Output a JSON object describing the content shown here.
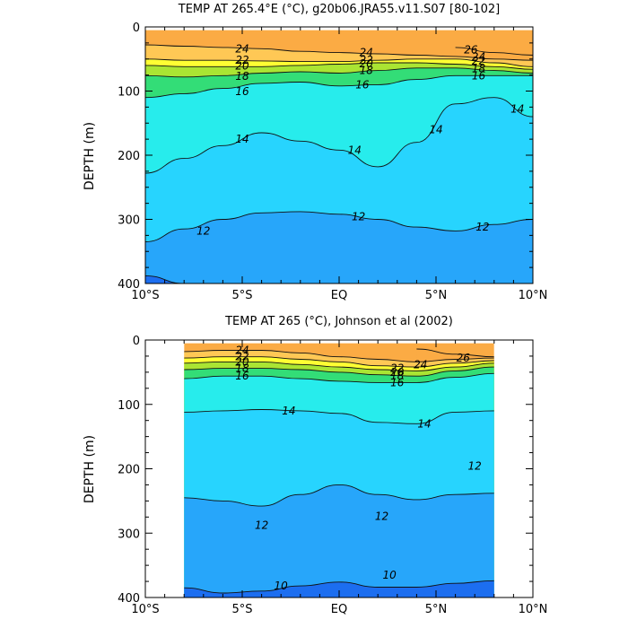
{
  "chart_data": [
    {
      "type": "contour",
      "title": "TEMP AT 265.4°E (°C), g20b06.JRA55.v11.S07 [80-102]",
      "ylabel": "DEPTH (m)",
      "xlim": [
        -10,
        10
      ],
      "ylim": [
        400,
        0
      ],
      "x_ticks": [
        -10,
        -5,
        0,
        5,
        10
      ],
      "x_tick_labels": [
        "10°S",
        "5°S",
        "EQ",
        "5°N",
        "10°N"
      ],
      "y_ticks": [
        0,
        100,
        200,
        300,
        400
      ],
      "y_tick_labels": [
        "0",
        "100",
        "200",
        "300",
        "400"
      ],
      "x": [
        -10,
        -8,
        -6,
        -4,
        -2,
        0,
        2,
        4,
        6,
        8,
        10
      ],
      "isotherm_depths": [
        {
          "temp": 26,
          "depth": [
            null,
            null,
            null,
            null,
            null,
            null,
            null,
            null,
            32,
            40,
            44
          ]
        },
        {
          "temp": 24,
          "depth": [
            28,
            30,
            32,
            34,
            38,
            40,
            42,
            44,
            46,
            50,
            52
          ]
        },
        {
          "temp": 22,
          "depth": [
            50,
            52,
            52,
            53,
            54,
            54,
            52,
            50,
            50,
            56,
            62
          ]
        },
        {
          "temp": 20,
          "depth": [
            60,
            62,
            62,
            62,
            60,
            58,
            56,
            56,
            58,
            62,
            66
          ]
        },
        {
          "temp": 18,
          "depth": [
            76,
            78,
            76,
            72,
            70,
            72,
            68,
            64,
            64,
            68,
            72
          ]
        },
        {
          "temp": 16,
          "depth": [
            110,
            104,
            96,
            88,
            86,
            92,
            90,
            82,
            76,
            76,
            76
          ]
        },
        {
          "temp": 14,
          "depth": [
            228,
            205,
            185,
            165,
            178,
            192,
            218,
            180,
            120,
            110,
            140
          ]
        },
        {
          "temp": 12,
          "depth": [
            335,
            315,
            300,
            290,
            288,
            292,
            300,
            312,
            318,
            308,
            300
          ]
        },
        {
          "temp": 10,
          "depth": [
            388,
            400,
            null,
            null,
            null,
            null,
            null,
            null,
            null,
            null,
            null
          ]
        }
      ],
      "contour_labels": [
        {
          "text": "24",
          "x": -5.0,
          "y": 34
        },
        {
          "text": "22",
          "x": -5.0,
          "y": 52
        },
        {
          "text": "20",
          "x": -5.0,
          "y": 61
        },
        {
          "text": "18",
          "x": -5.0,
          "y": 77
        },
        {
          "text": "16",
          "x": -5.0,
          "y": 101
        },
        {
          "text": "24",
          "x": 1.4,
          "y": 40
        },
        {
          "text": "22",
          "x": 1.4,
          "y": 52
        },
        {
          "text": "20",
          "x": 1.4,
          "y": 57
        },
        {
          "text": "18",
          "x": 1.4,
          "y": 68
        },
        {
          "text": "16",
          "x": 1.2,
          "y": 90
        },
        {
          "text": "26",
          "x": 6.8,
          "y": 36
        },
        {
          "text": "24",
          "x": 7.2,
          "y": 47
        },
        {
          "text": "22",
          "x": 7.2,
          "y": 53
        },
        {
          "text": "18",
          "x": 7.2,
          "y": 65
        },
        {
          "text": "16",
          "x": 7.2,
          "y": 76
        },
        {
          "text": "14",
          "x": -5.0,
          "y": 175
        },
        {
          "text": "14",
          "x": 0.8,
          "y": 192
        },
        {
          "text": "14",
          "x": 5.0,
          "y": 160
        },
        {
          "text": "14",
          "x": 9.2,
          "y": 128
        },
        {
          "text": "12",
          "x": -7.0,
          "y": 318
        },
        {
          "text": "12",
          "x": 1.0,
          "y": 296
        },
        {
          "text": "12",
          "x": 7.4,
          "y": 312
        }
      ]
    },
    {
      "type": "contour",
      "title": "TEMP AT 265 (°C), Johnson et al (2002)",
      "ylabel": "DEPTH (m)",
      "xlim": [
        -10,
        10
      ],
      "ylim": [
        400,
        0
      ],
      "data_extent_x": [
        -8,
        8
      ],
      "x_ticks": [
        -10,
        -5,
        0,
        5,
        10
      ],
      "x_tick_labels": [
        "10°S",
        "5°S",
        "EQ",
        "5°N",
        "10°N"
      ],
      "y_ticks": [
        0,
        100,
        200,
        300,
        400
      ],
      "y_tick_labels": [
        "0",
        "100",
        "200",
        "300",
        "400"
      ],
      "x": [
        -8,
        -6,
        -4,
        -2,
        0,
        2,
        4,
        6,
        8
      ],
      "isotherm_depths": [
        {
          "temp": 26,
          "depth": [
            null,
            null,
            null,
            null,
            null,
            null,
            14,
            22,
            26
          ]
        },
        {
          "temp": 24,
          "depth": [
            18,
            16,
            16,
            20,
            26,
            30,
            34,
            30,
            28
          ]
        },
        {
          "temp": 22,
          "depth": [
            28,
            26,
            26,
            30,
            34,
            40,
            42,
            36,
            32
          ]
        },
        {
          "temp": 20,
          "depth": [
            36,
            34,
            34,
            38,
            42,
            46,
            48,
            42,
            36
          ]
        },
        {
          "temp": 18,
          "depth": [
            46,
            44,
            44,
            46,
            50,
            54,
            56,
            48,
            42
          ]
        },
        {
          "temp": 16,
          "depth": [
            60,
            56,
            56,
            60,
            64,
            66,
            66,
            58,
            52
          ]
        },
        {
          "temp": 14,
          "depth": [
            112,
            110,
            108,
            110,
            114,
            128,
            130,
            112,
            110
          ]
        },
        {
          "temp": 12,
          "depth": [
            245,
            250,
            258,
            240,
            225,
            240,
            248,
            240,
            238
          ]
        },
        {
          "temp": 10,
          "depth": [
            385,
            393,
            390,
            382,
            376,
            384,
            384,
            378,
            374
          ]
        }
      ],
      "contour_labels": [
        {
          "text": "24",
          "x": -5.0,
          "y": 16
        },
        {
          "text": "22",
          "x": -5.0,
          "y": 26
        },
        {
          "text": "20",
          "x": -5.0,
          "y": 34
        },
        {
          "text": "18",
          "x": -5.0,
          "y": 44
        },
        {
          "text": "16",
          "x": -5.0,
          "y": 56
        },
        {
          "text": "22",
          "x": 3.0,
          "y": 44
        },
        {
          "text": "20",
          "x": 3.0,
          "y": 50
        },
        {
          "text": "18",
          "x": 3.0,
          "y": 56
        },
        {
          "text": "16",
          "x": 3.0,
          "y": 66
        },
        {
          "text": "24",
          "x": 4.2,
          "y": 38
        },
        {
          "text": "26",
          "x": 6.4,
          "y": 28
        },
        {
          "text": "14",
          "x": -2.6,
          "y": 110
        },
        {
          "text": "14",
          "x": 4.4,
          "y": 130
        },
        {
          "text": "12",
          "x": 7.0,
          "y": 196
        },
        {
          "text": "12",
          "x": -4.0,
          "y": 288
        },
        {
          "text": "12",
          "x": 2.2,
          "y": 274
        },
        {
          "text": "10",
          "x": -3.0,
          "y": 382
        },
        {
          "text": "10",
          "x": 2.6,
          "y": 365
        }
      ]
    }
  ],
  "colors": {
    "levels": [
      10,
      12,
      14,
      16,
      18,
      20,
      22,
      24,
      26
    ],
    "fill_below_10": "#1c6ef0",
    "fill": [
      "#1f87f4",
      "#27a6fa",
      "#27d4fe",
      "#27ecec",
      "#33dd77",
      "#aae533",
      "#ffff33",
      "#ffc855",
      "#fbab44",
      "#ee3a16"
    ]
  }
}
